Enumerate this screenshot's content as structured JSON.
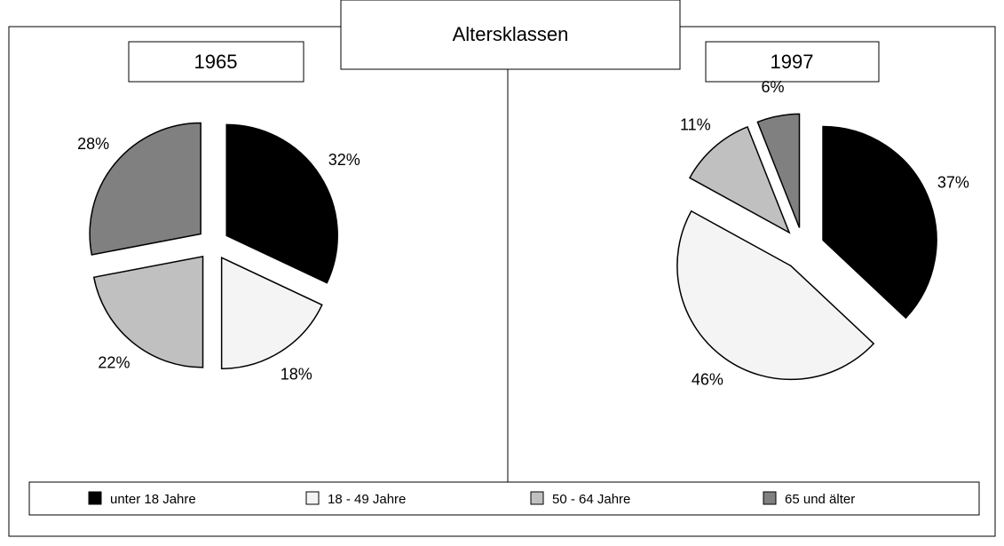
{
  "title": "Altersklassen",
  "chart_data": [
    {
      "type": "pie",
      "title": "1965",
      "categories": [
        "unter 18 Jahre",
        "18 - 49 Jahre",
        "50  - 64 Jahre",
        "65 und älter"
      ],
      "values": [
        32,
        18,
        22,
        28
      ],
      "value_labels": [
        "32%",
        "18%",
        "22%",
        "28%"
      ],
      "colors": [
        "#000000",
        "#f4f4f4",
        "#c0c0c0",
        "#808080"
      ]
    },
    {
      "type": "pie",
      "title": "1997",
      "categories": [
        "unter 18 Jahre",
        "18 - 49 Jahre",
        "50  - 64 Jahre",
        "65 und älter"
      ],
      "values": [
        37,
        46,
        11,
        6
      ],
      "value_labels": [
        "37%",
        "46%",
        "11%",
        "6%"
      ],
      "colors": [
        "#000000",
        "#f4f4f4",
        "#c0c0c0",
        "#808080"
      ]
    }
  ]
}
